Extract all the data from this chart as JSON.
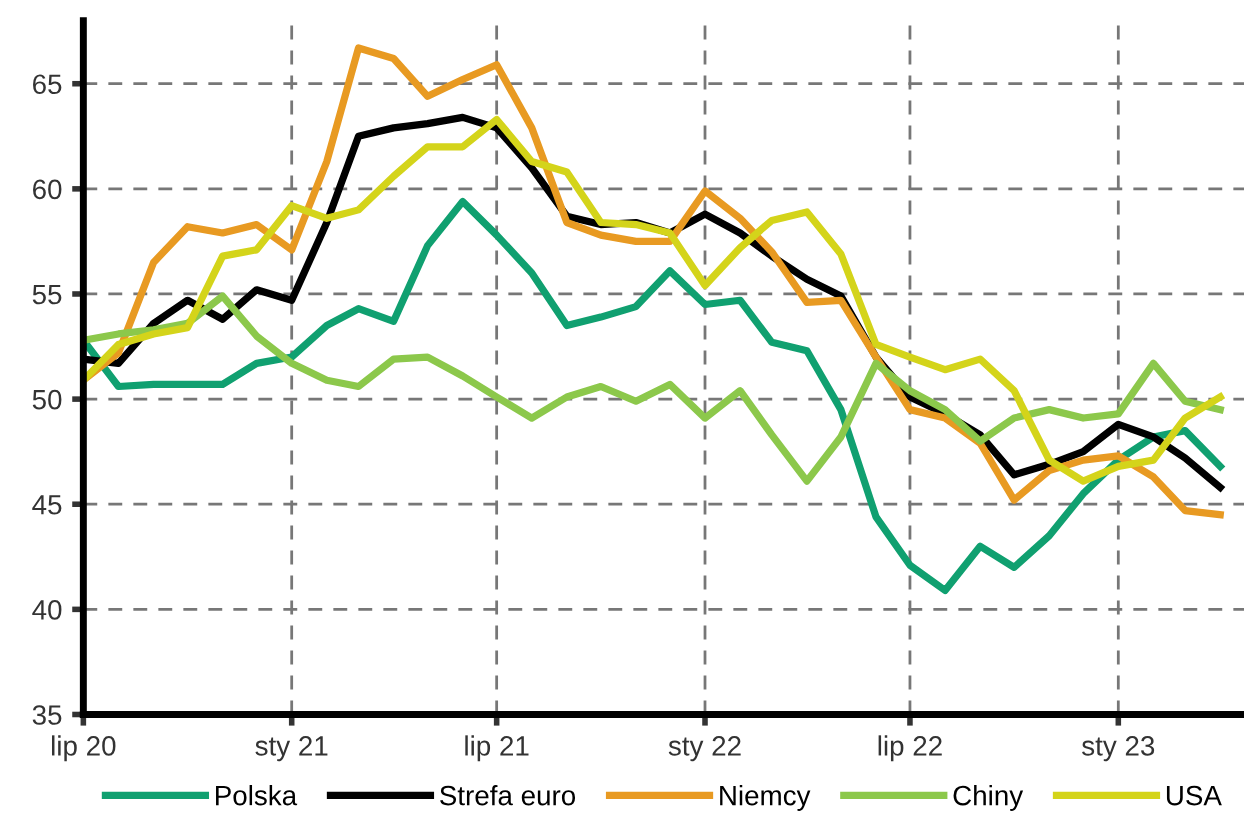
{
  "chart_data": {
    "type": "line",
    "x": [
      "2020-07",
      "2020-08",
      "2020-09",
      "2020-10",
      "2020-11",
      "2020-12",
      "2021-01",
      "2021-02",
      "2021-03",
      "2021-04",
      "2021-05",
      "2021-06",
      "2021-07",
      "2021-08",
      "2021-09",
      "2021-10",
      "2021-11",
      "2021-12",
      "2022-01",
      "2022-02",
      "2022-03",
      "2022-04",
      "2022-05",
      "2022-06",
      "2022-07",
      "2022-08",
      "2022-09",
      "2022-10",
      "2022-11",
      "2022-12",
      "2023-01",
      "2023-02",
      "2023-03",
      "2023-04"
    ],
    "series": [
      {
        "name": "Polska",
        "color": "#10a070",
        "values": [
          52.8,
          50.6,
          50.7,
          50.7,
          50.7,
          51.7,
          52.0,
          53.5,
          54.3,
          53.7,
          57.3,
          59.4,
          57.8,
          56.0,
          53.5,
          53.9,
          54.4,
          56.1,
          54.5,
          54.7,
          52.7,
          52.3,
          49.5,
          44.4,
          42.1,
          40.9,
          43.0,
          42.0,
          43.5,
          45.5,
          47.1,
          48.2,
          48.5,
          46.8
        ]
      },
      {
        "name": "Strefa euro",
        "color": "#000000",
        "values": [
          51.9,
          51.7,
          53.6,
          54.7,
          53.8,
          55.2,
          54.7,
          58.4,
          62.5,
          62.9,
          63.1,
          63.4,
          62.9,
          61.0,
          58.7,
          58.3,
          58.4,
          57.9,
          58.8,
          57.9,
          56.8,
          55.7,
          54.9,
          52.0,
          50.1,
          49.3,
          48.3,
          46.4,
          46.9,
          47.5,
          48.8,
          48.2,
          47.2,
          45.8
        ]
      },
      {
        "name": "Niemcy",
        "color": "#e89a22",
        "values": [
          50.9,
          52.2,
          56.5,
          58.2,
          57.9,
          58.3,
          57.1,
          61.3,
          66.7,
          66.2,
          64.4,
          65.2,
          65.9,
          62.9,
          58.4,
          57.8,
          57.5,
          57.5,
          59.9,
          58.6,
          57.0,
          54.6,
          54.7,
          52.0,
          49.5,
          49.1,
          47.9,
          45.2,
          46.6,
          47.1,
          47.3,
          46.3,
          44.7,
          44.5
        ]
      },
      {
        "name": "Chiny",
        "color": "#8cc84b",
        "values": [
          52.8,
          53.1,
          53.3,
          53.6,
          54.9,
          53.0,
          51.7,
          50.9,
          50.6,
          51.9,
          52.0,
          51.1,
          50.1,
          49.1,
          50.1,
          50.6,
          49.9,
          50.7,
          49.1,
          50.4,
          48.3,
          46.1,
          48.2,
          51.7,
          50.4,
          49.5,
          48.0,
          49.1,
          49.5,
          49.1,
          49.3,
          51.7,
          49.9,
          49.5
        ]
      },
      {
        "name": "USA",
        "color": "#d4d41a",
        "values": [
          50.9,
          52.6,
          53.1,
          53.4,
          56.8,
          57.1,
          59.2,
          58.6,
          59.0,
          60.6,
          62.0,
          62.0,
          63.3,
          61.3,
          60.8,
          58.4,
          58.3,
          57.9,
          55.4,
          57.2,
          58.5,
          58.9,
          56.9,
          52.6,
          52.0,
          51.4,
          51.9,
          50.4,
          47.1,
          46.1,
          46.8,
          47.1,
          49.1,
          50.1
        ]
      }
    ],
    "xlim": [
      "2020-07-01",
      "2023-04-22"
    ],
    "xticks": [
      {
        "value": "2020-07",
        "label": "lip 20"
      },
      {
        "value": "2021-01",
        "label": "sty 21"
      },
      {
        "value": "2021-07",
        "label": "lip 21"
      },
      {
        "value": "2022-01",
        "label": "sty 22"
      },
      {
        "value": "2022-07",
        "label": "lip 22"
      },
      {
        "value": "2023-01",
        "label": "sty 23"
      }
    ],
    "ylim": [
      35,
      68
    ],
    "yticks": [
      35,
      40,
      45,
      50,
      55,
      60,
      65
    ],
    "grid": true,
    "legend": "bottom",
    "line_style": "solid",
    "marker": "none"
  }
}
